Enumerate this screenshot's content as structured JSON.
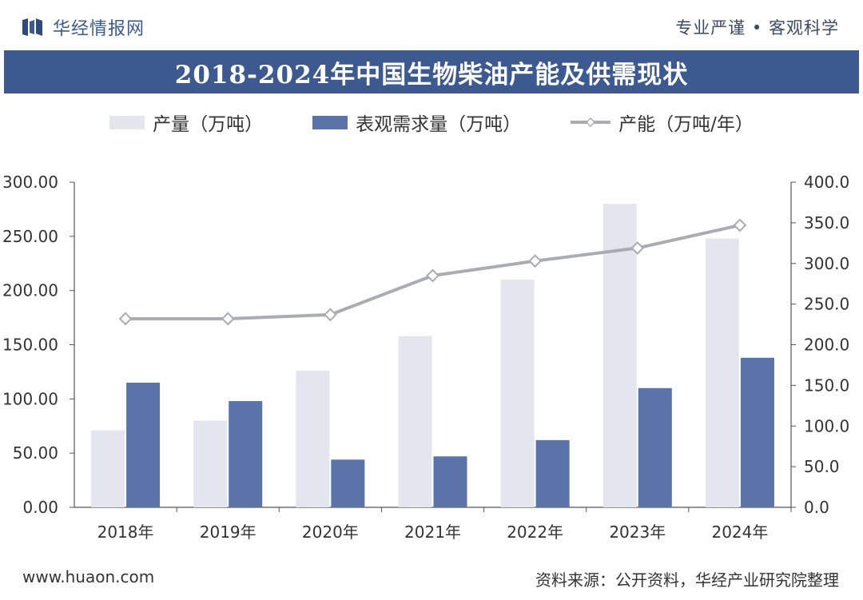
{
  "header": {
    "brand_name": "华经情报网",
    "slogan": "专业严谨 • 客观科学"
  },
  "chart_data": {
    "type": "bar",
    "title": "2018-2024年中国生物柴油产能及供需现状",
    "categories": [
      "2018年",
      "2019年",
      "2020年",
      "2021年",
      "2022年",
      "2023年",
      "2024年"
    ],
    "series": [
      {
        "name": "产量（万吨）",
        "type": "bar",
        "axis": "left",
        "color": "#e3e6ee",
        "values": [
          71,
          80,
          126,
          158,
          210,
          280,
          248
        ]
      },
      {
        "name": "表观需求量（万吨）",
        "type": "bar",
        "axis": "left",
        "color": "#5a73a8",
        "values": [
          115,
          98,
          44,
          47,
          62,
          110,
          138
        ]
      },
      {
        "name": "产能（万吨/年）",
        "type": "line",
        "axis": "right",
        "color": "#a9acb1",
        "values": [
          232,
          232,
          237,
          285,
          303,
          319,
          347
        ]
      }
    ],
    "y_left": {
      "min": 0,
      "max": 300,
      "step": 50,
      "ticks": [
        "0.00",
        "50.00",
        "100.00",
        "150.00",
        "200.00",
        "250.00",
        "300.00"
      ]
    },
    "y_right": {
      "min": 0,
      "max": 400,
      "step": 50,
      "ticks": [
        "0.0",
        "50.0",
        "100.0",
        "150.0",
        "200.0",
        "250.0",
        "300.0",
        "350.0",
        "400.0"
      ]
    },
    "grid": false,
    "legend_position": "top"
  },
  "footer": {
    "website": "www.huaon.com",
    "source": "资料来源：公开资料，华经产业研究院整理"
  }
}
